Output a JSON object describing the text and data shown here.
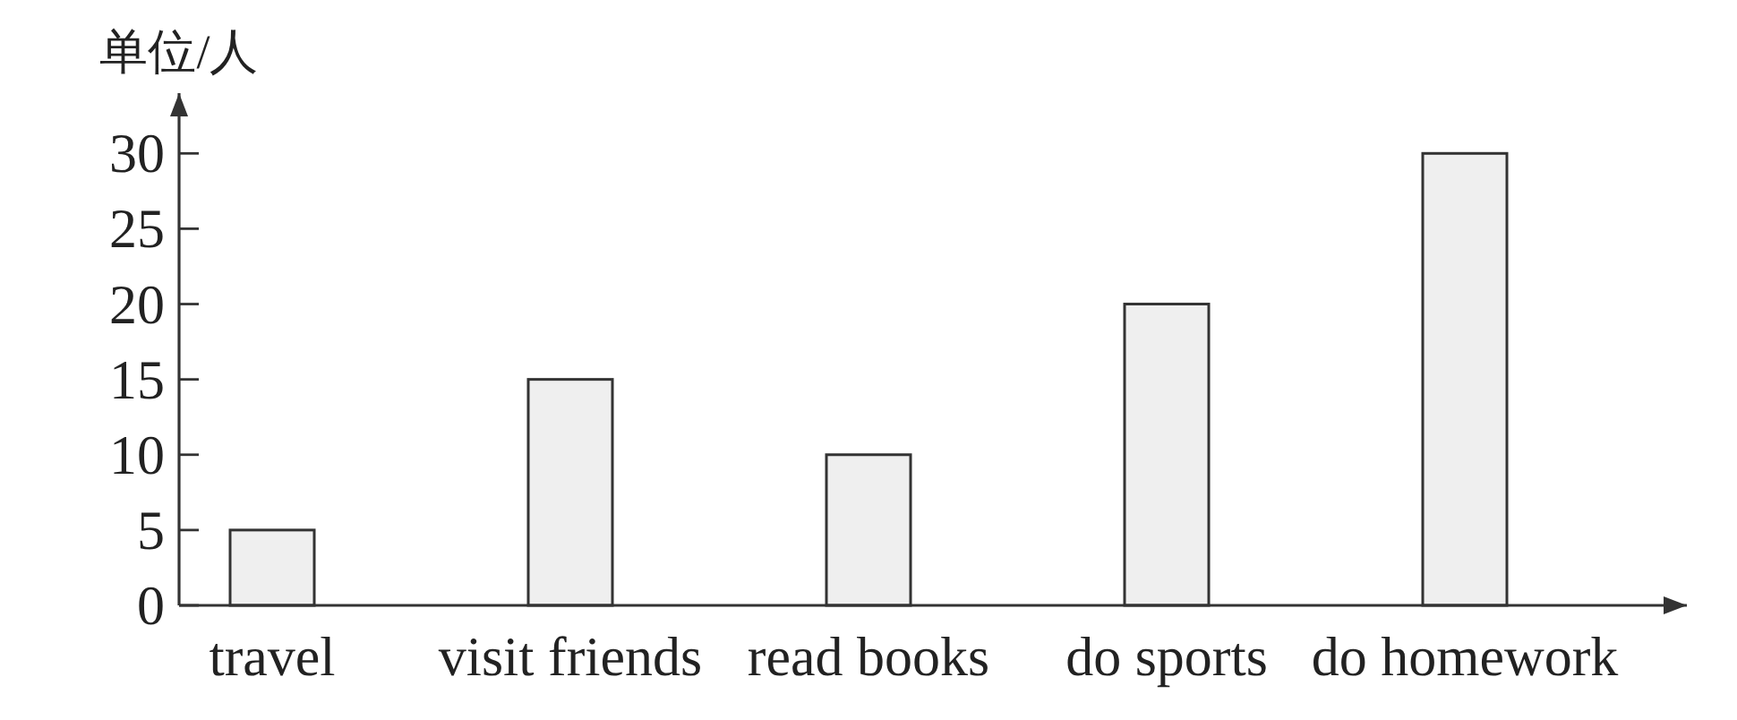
{
  "chart_data": {
    "type": "bar",
    "ylabel": "单位/人",
    "categories": [
      "travel",
      "visit friends",
      "read books",
      "do sports",
      "do homework"
    ],
    "values": [
      5,
      15,
      10,
      20,
      30
    ],
    "color": "#efefef",
    "ylim": [
      0,
      34
    ],
    "yticks": [
      0,
      5,
      10,
      15,
      20,
      25,
      30
    ]
  }
}
